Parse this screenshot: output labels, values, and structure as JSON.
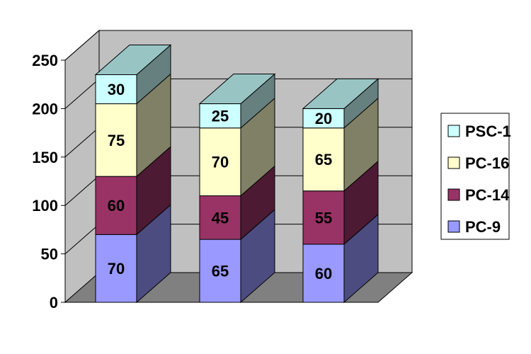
{
  "chart_data": {
    "type": "bar",
    "stacked": true,
    "style": "3d",
    "categories": [
      "",
      "",
      ""
    ],
    "series": [
      {
        "name": "PC-9",
        "values": [
          70,
          65,
          60
        ],
        "color": "#9999ff",
        "side_color": "#4c4c80",
        "top_color": "#7a7acc"
      },
      {
        "name": "PC-14",
        "values": [
          60,
          45,
          55
        ],
        "color": "#993366",
        "side_color": "#4d1a33",
        "top_color": "#7a2952"
      },
      {
        "name": "PC-16",
        "values": [
          75,
          70,
          65
        ],
        "color": "#ffffcc",
        "side_color": "#808066",
        "top_color": "#ccccaa"
      },
      {
        "name": "PSC-1",
        "values": [
          30,
          25,
          20
        ],
        "color": "#ccffff",
        "side_color": "#668080",
        "top_color": "#99c4c4"
      }
    ],
    "ylim": [
      0,
      250
    ],
    "yticks": [
      "0",
      "50",
      "100",
      "150",
      "200",
      "250"
    ],
    "grid": true,
    "legend_position": "right",
    "wall_color": "#c0c0c0",
    "floor_color": "#808080"
  }
}
